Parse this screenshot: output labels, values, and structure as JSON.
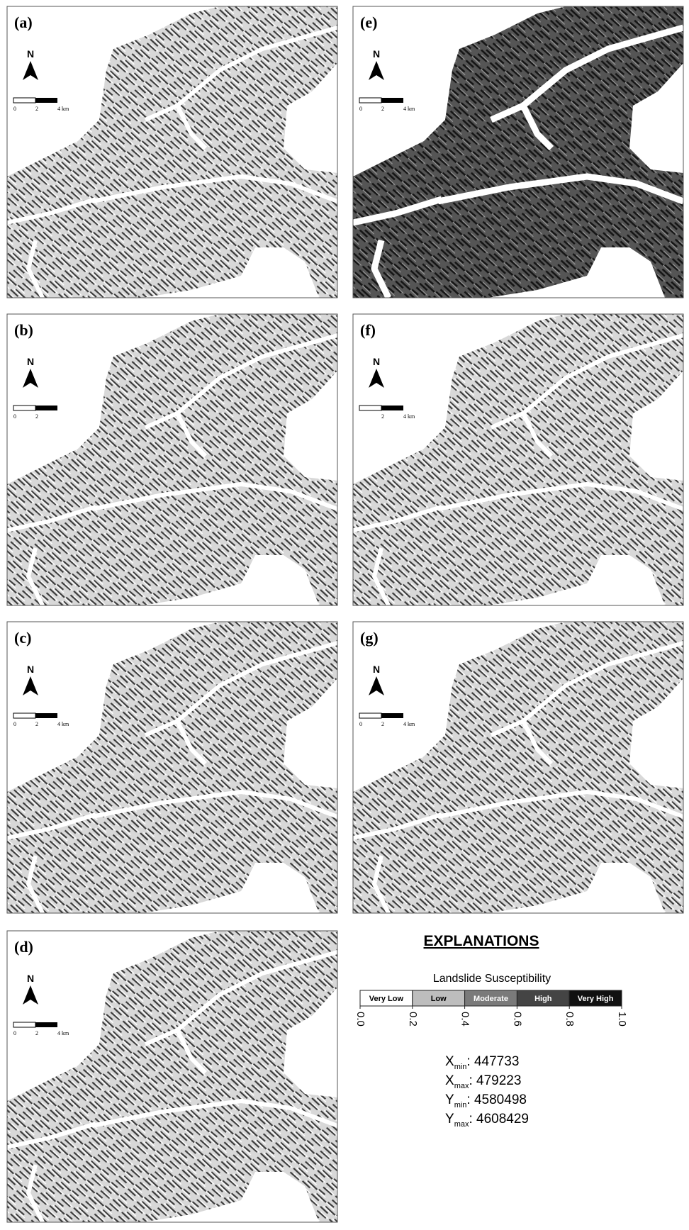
{
  "panels": [
    {
      "label": "(a)",
      "north": "N",
      "scale": [
        "0",
        "2",
        "4 km"
      ]
    },
    {
      "label": "(b)",
      "north": "N",
      "scale": [
        "0",
        "2"
      ]
    },
    {
      "label": "(c)",
      "north": "N",
      "scale": [
        "0",
        "2",
        "4 km"
      ]
    },
    {
      "label": "(d)",
      "north": "N",
      "scale": [
        "0",
        "2",
        "4 km"
      ]
    },
    {
      "label": "(e)",
      "north": "N",
      "scale": [
        "0",
        "2",
        "4 km"
      ]
    },
    {
      "label": "(f)",
      "north": "N",
      "scale": [
        "2",
        "4 km"
      ]
    },
    {
      "label": "(g)",
      "north": "N",
      "scale": [
        "0",
        "2",
        "4 km"
      ]
    }
  ],
  "legend": {
    "title": "EXPLANATIONS",
    "subtitle": "Landslide Susceptibility",
    "classes": [
      {
        "name": "Very Low",
        "color": "#ffffff"
      },
      {
        "name": "Low",
        "color": "#bdbdbd"
      },
      {
        "name": "Moderate",
        "color": "#7a7a7a"
      },
      {
        "name": "High",
        "color": "#444444"
      },
      {
        "name": "Very High",
        "color": "#111111"
      }
    ],
    "ticks": [
      {
        "value": 0,
        "label": "0.0"
      },
      {
        "value": 0.2,
        "label": "0.2"
      },
      {
        "value": 0.4,
        "label": "0.4"
      },
      {
        "value": 0.6,
        "label": "0.6"
      },
      {
        "value": 0.8,
        "label": "0.8"
      },
      {
        "value": 1,
        "label": "1.0"
      }
    ],
    "range": [
      0,
      1
    ]
  },
  "extent": [
    {
      "var": "X",
      "sub": "min",
      "value": 447733
    },
    {
      "var": "X",
      "sub": "max",
      "value": 479223
    },
    {
      "var": "Y",
      "sub": "min",
      "value": 4580498
    },
    {
      "var": "Y",
      "sub": "max",
      "value": 4608429
    }
  ]
}
